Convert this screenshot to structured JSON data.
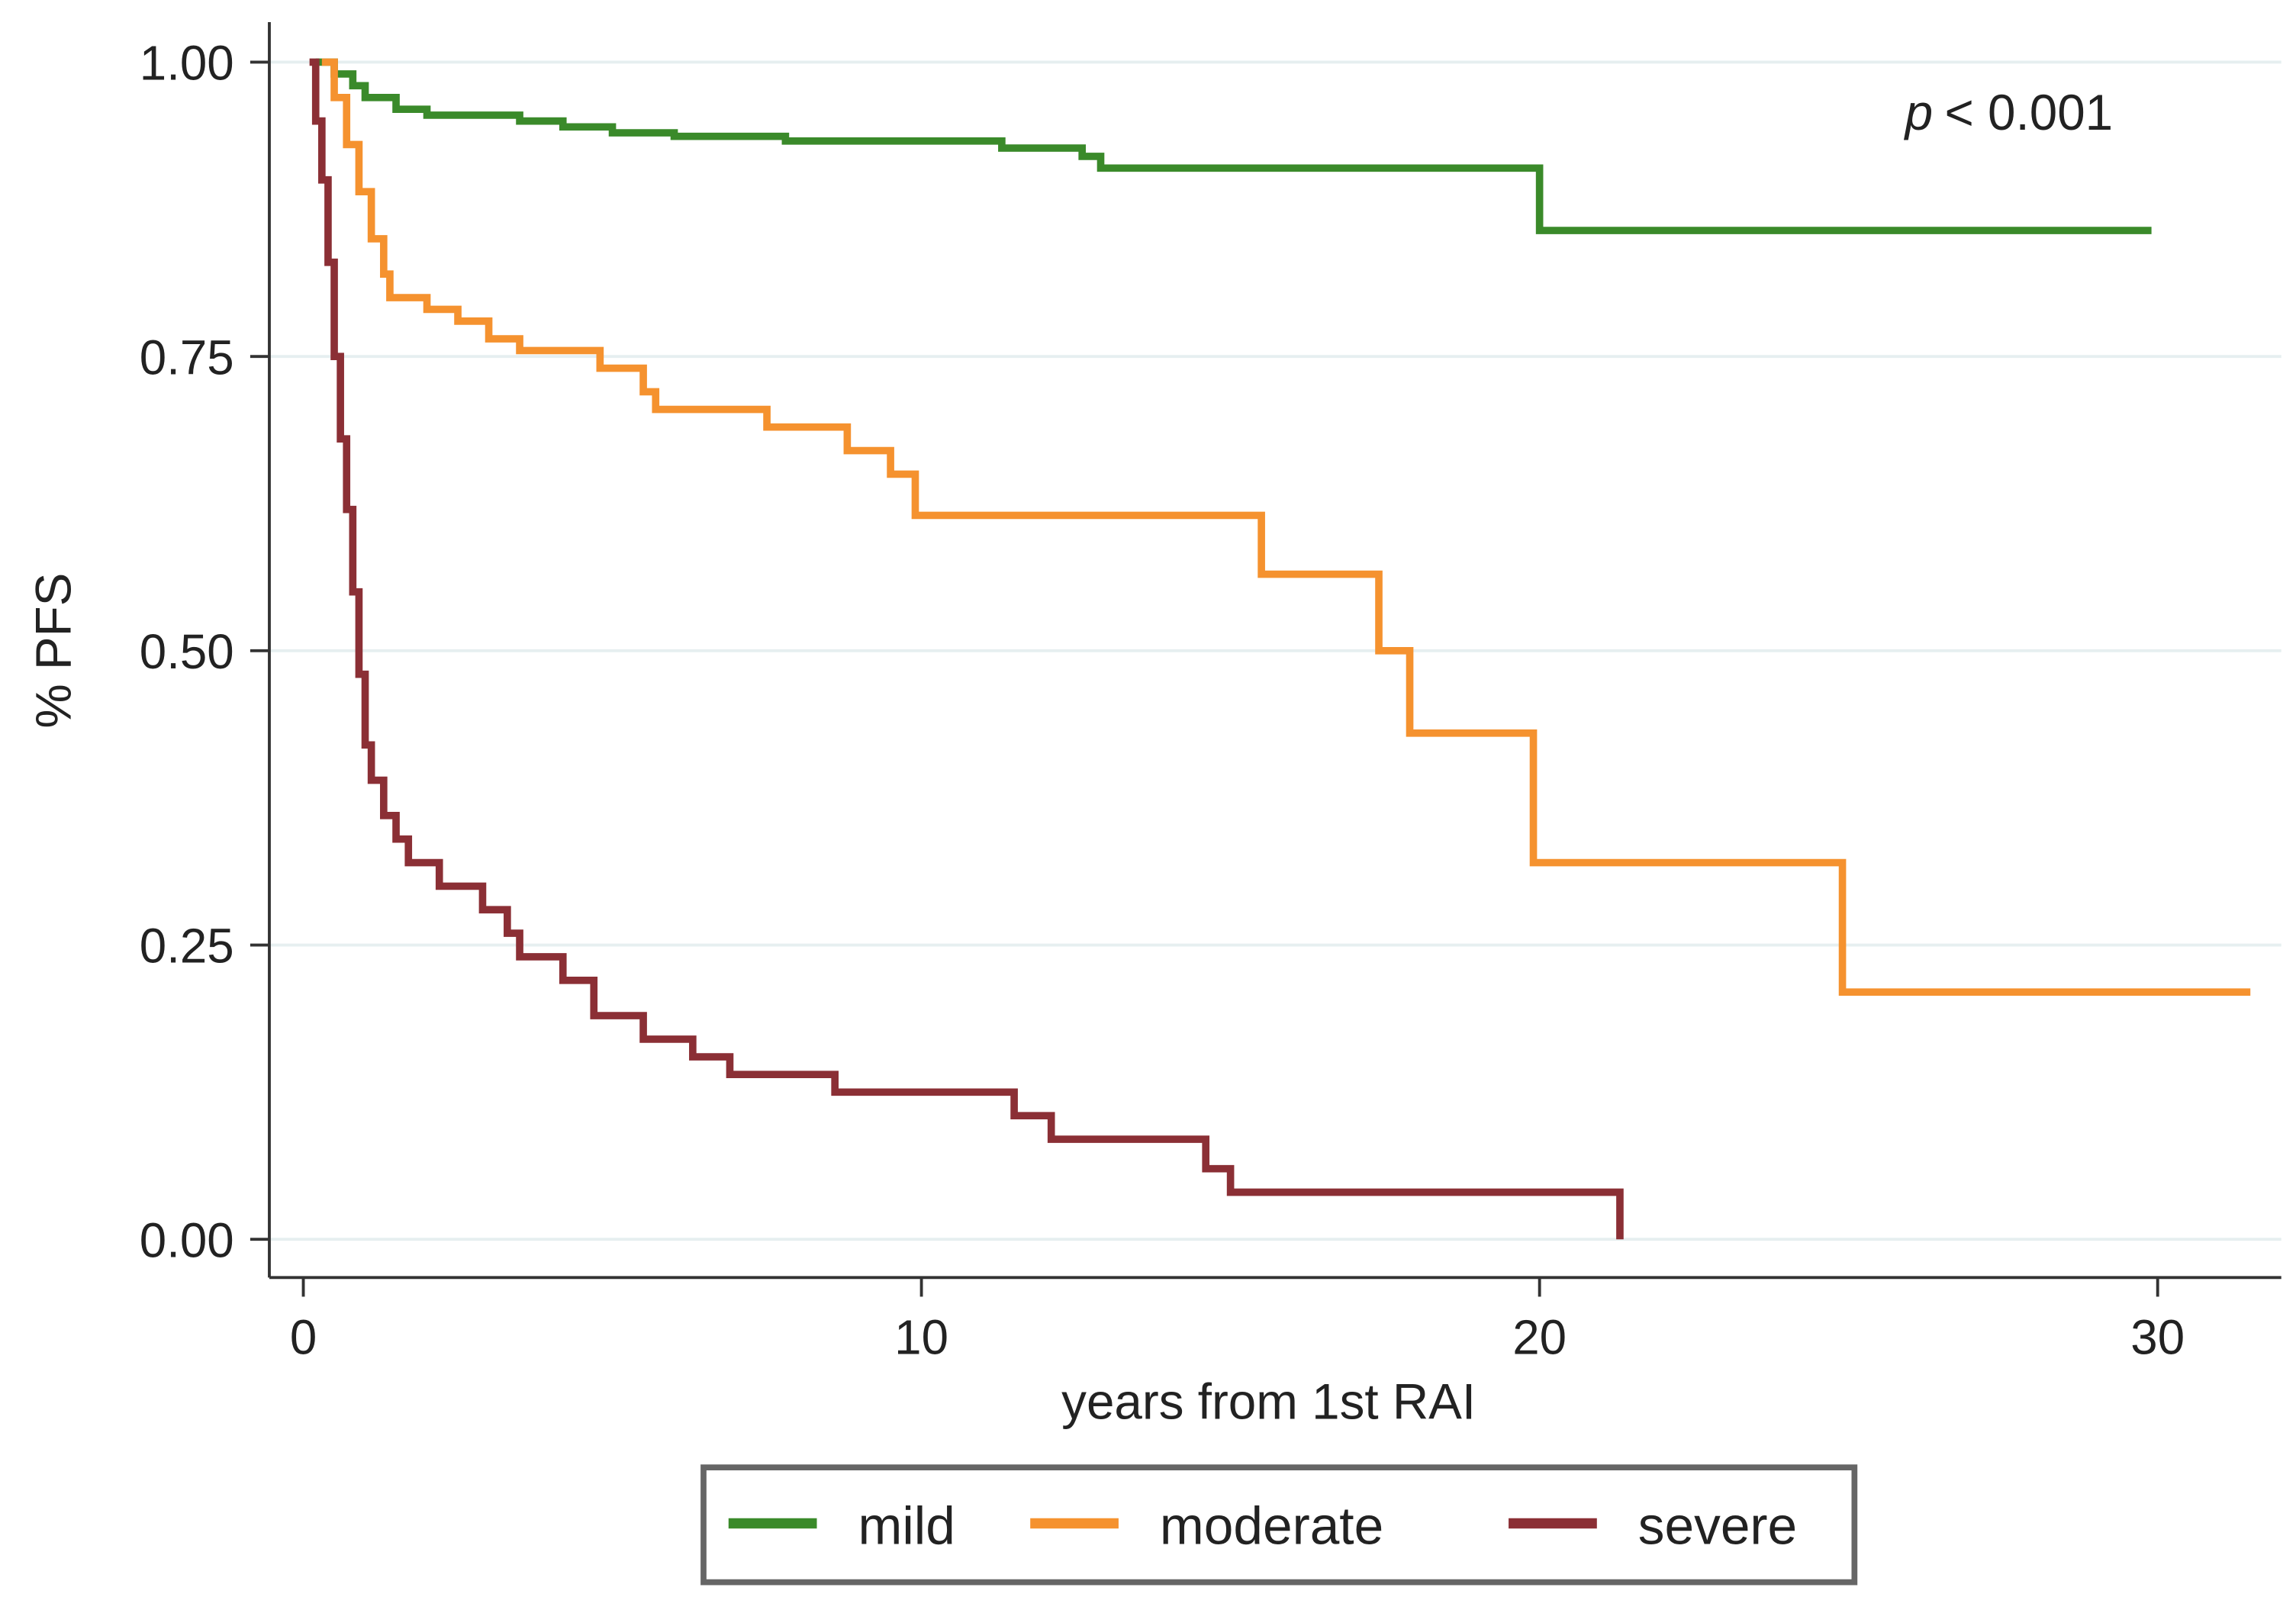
{
  "chart_data": {
    "type": "line",
    "step": true,
    "x_label": "years from 1st RAI",
    "y_label": "% PFS",
    "annotation": {
      "italic": "p",
      "text": "< 0.001"
    },
    "xlim": [
      -0.55,
      32
    ],
    "ylim": [
      -0.0325,
      1.034
    ],
    "xticks": [
      0,
      10,
      20,
      30
    ],
    "yticks": [
      {
        "value": 0,
        "label": "0.00"
      },
      {
        "value": 0.25,
        "label": "0.25"
      },
      {
        "value": 0.5,
        "label": "0.50"
      },
      {
        "value": 0.75,
        "label": "0.75"
      },
      {
        "value": 1,
        "label": "1.00"
      }
    ],
    "grid": true,
    "legend": "bottom",
    "series": [
      {
        "name": "mild",
        "color": "#3a8a2a",
        "x": [
          0.2,
          0.5,
          0.8,
          1,
          1.5,
          2,
          3.5,
          4.2,
          5,
          6,
          7.8,
          11.3,
          12.6,
          12.9,
          20,
          29.9
        ],
        "values": [
          1,
          0.99,
          0.98,
          0.97,
          0.96,
          0.955,
          0.95,
          0.945,
          0.94,
          0.937,
          0.933,
          0.927,
          0.92,
          0.91,
          0.857,
          0.857
        ]
      },
      {
        "name": "moderate",
        "color": "#f5922f",
        "x": [
          0.3,
          0.5,
          0.7,
          0.9,
          1.1,
          1.3,
          1.4,
          2,
          2.5,
          3,
          3.5,
          4.8,
          5.5,
          5.7,
          7.5,
          8.8,
          9.5,
          9.9,
          15.5,
          17.4,
          17.9,
          19.9,
          24.9,
          31.5
        ],
        "values": [
          1,
          0.97,
          0.93,
          0.89,
          0.85,
          0.82,
          0.8,
          0.79,
          0.78,
          0.765,
          0.755,
          0.74,
          0.72,
          0.705,
          0.69,
          0.67,
          0.65,
          0.615,
          0.565,
          0.5,
          0.43,
          0.32,
          0.21,
          0.21
        ]
      },
      {
        "name": "severe",
        "color": "#8b2f35",
        "x": [
          0.1,
          0.2,
          0.3,
          0.4,
          0.5,
          0.6,
          0.7,
          0.8,
          0.9,
          1,
          1.1,
          1.3,
          1.5,
          1.7,
          2.2,
          2.9,
          3.3,
          3.5,
          4.2,
          4.7,
          5.5,
          6.3,
          6.9,
          8.6,
          11.5,
          12.1,
          14.6,
          15,
          21.3,
          21.3
        ],
        "values": [
          1,
          0.95,
          0.9,
          0.83,
          0.75,
          0.68,
          0.62,
          0.55,
          0.48,
          0.42,
          0.39,
          0.36,
          0.34,
          0.32,
          0.3,
          0.28,
          0.26,
          0.24,
          0.22,
          0.19,
          0.17,
          0.155,
          0.14,
          0.125,
          0.105,
          0.085,
          0.06,
          0.04,
          0.04,
          0
        ]
      }
    ]
  }
}
